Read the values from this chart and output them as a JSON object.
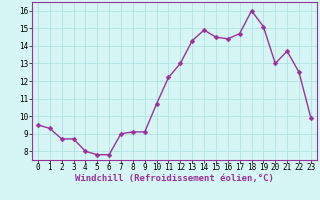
{
  "x": [
    0,
    1,
    2,
    3,
    4,
    5,
    6,
    7,
    8,
    9,
    10,
    11,
    12,
    13,
    14,
    15,
    16,
    17,
    18,
    19,
    20,
    21,
    22,
    23
  ],
  "y": [
    9.5,
    9.3,
    8.7,
    8.7,
    8.0,
    7.8,
    7.8,
    9.0,
    9.1,
    9.1,
    10.7,
    12.2,
    13.0,
    14.3,
    14.9,
    14.5,
    14.4,
    14.7,
    16.0,
    15.1,
    13.0,
    13.7,
    12.5,
    9.9
  ],
  "line_color": "#993399",
  "marker_color": "#993399",
  "bg_color": "#d6f5f5",
  "grid_color": "#aadddd",
  "xlabel": "Windchill (Refroidissement éolien,°C)",
  "xlim": [
    -0.5,
    23.5
  ],
  "ylim": [
    7.5,
    16.5
  ],
  "yticks": [
    8,
    9,
    10,
    11,
    12,
    13,
    14,
    15,
    16
  ],
  "xticks": [
    0,
    1,
    2,
    3,
    4,
    5,
    6,
    7,
    8,
    9,
    10,
    11,
    12,
    13,
    14,
    15,
    16,
    17,
    18,
    19,
    20,
    21,
    22,
    23
  ],
  "tick_fontsize": 5.5,
  "xlabel_fontsize": 6.5,
  "line_width": 1.0,
  "marker_size": 2.5
}
